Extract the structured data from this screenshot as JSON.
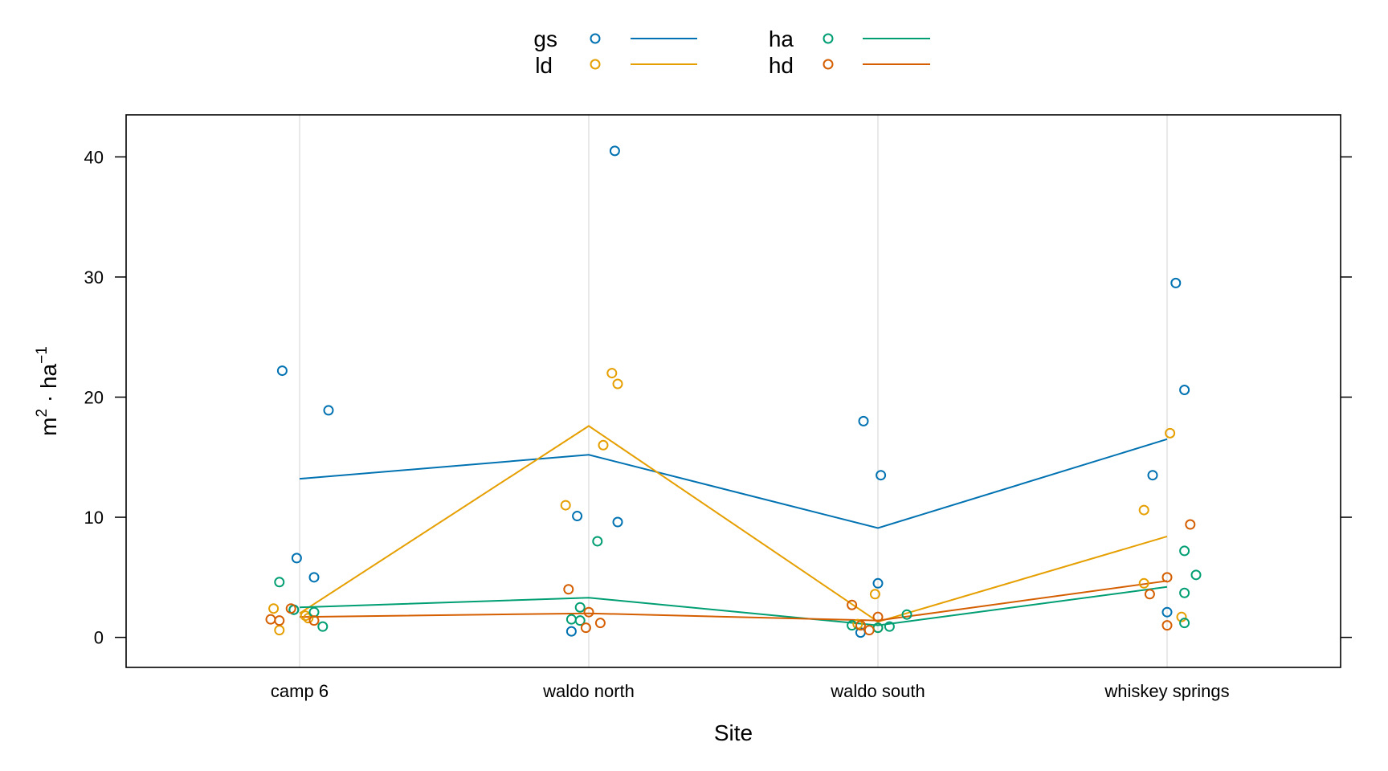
{
  "chart_data": {
    "type": "scatter",
    "xlabel": "Site",
    "ylabel": "m² · ha⁻¹",
    "ylabel_parts": {
      "base1": "m",
      "sup1": "2",
      "dot": " · ",
      "base2": "ha",
      "sup2": "−1"
    },
    "categories": [
      "camp 6",
      "waldo north",
      "waldo south",
      "whiskey springs"
    ],
    "ylim": [
      -2.5,
      43.5
    ],
    "yticks": [
      0,
      10,
      20,
      30,
      40
    ],
    "grid": "vertical",
    "legend": {
      "placement": "top",
      "columns": 2
    },
    "series": [
      {
        "name": "gs",
        "color": "#0072B2",
        "means": [
          13.2,
          15.2,
          9.1,
          16.5
        ],
        "points": [
          {
            "x": -0.06,
            "y": 22.2
          },
          {
            "x": 0.1,
            "y": 18.9
          },
          {
            "x": -0.01,
            "y": 6.6
          },
          {
            "x": 0.05,
            "y": 5.0
          },
          {
            "x": -0.02,
            "y": 2.3
          },
          {
            "x": 0.09,
            "y": 40.5
          },
          {
            "x": -0.04,
            "y": 10.1
          },
          {
            "x": 0.1,
            "y": 9.6
          },
          {
            "x": -0.06,
            "y": 0.5
          },
          {
            "x": -0.05,
            "y": 18.0
          },
          {
            "x": 0.01,
            "y": 13.5
          },
          {
            "x": 0.0,
            "y": 4.5
          },
          {
            "x": -0.06,
            "y": 0.4
          },
          {
            "x": 0.03,
            "y": 29.5
          },
          {
            "x": 0.06,
            "y": 20.6
          },
          {
            "x": -0.05,
            "y": 13.5
          },
          {
            "x": 0.0,
            "y": 2.1
          }
        ]
      },
      {
        "name": "ld",
        "color": "#E69F00",
        "means": [
          2.0,
          17.6,
          1.3,
          8.4
        ],
        "points": [
          {
            "x": -0.09,
            "y": 2.4
          },
          {
            "x": 0.02,
            "y": 1.8
          },
          {
            "x": -0.07,
            "y": 0.6
          },
          {
            "x": 0.03,
            "y": 1.6
          },
          {
            "x": 0.08,
            "y": 22.0
          },
          {
            "x": 0.1,
            "y": 21.1
          },
          {
            "x": 0.05,
            "y": 16.0
          },
          {
            "x": -0.08,
            "y": 11.0
          },
          {
            "x": -0.01,
            "y": 3.6
          },
          {
            "x": -0.07,
            "y": 1.1
          },
          {
            "x": 0.0,
            "y": 0.8
          },
          {
            "x": 0.01,
            "y": 17.0
          },
          {
            "x": -0.08,
            "y": 10.6
          },
          {
            "x": -0.08,
            "y": 4.5
          },
          {
            "x": 0.05,
            "y": 1.7
          }
        ]
      },
      {
        "name": "ha",
        "color": "#009E73",
        "means": [
          2.5,
          3.3,
          1.0,
          4.2
        ],
        "points": [
          {
            "x": -0.07,
            "y": 4.6
          },
          {
            "x": 0.05,
            "y": 2.1
          },
          {
            "x": -0.02,
            "y": 2.3
          },
          {
            "x": 0.08,
            "y": 0.9
          },
          {
            "x": 0.03,
            "y": 8.0
          },
          {
            "x": -0.03,
            "y": 2.5
          },
          {
            "x": -0.06,
            "y": 1.5
          },
          {
            "x": -0.03,
            "y": 1.4
          },
          {
            "x": 0.1,
            "y": 1.9
          },
          {
            "x": -0.09,
            "y": 1.0
          },
          {
            "x": 0.0,
            "y": 0.8
          },
          {
            "x": 0.04,
            "y": 0.9
          },
          {
            "x": 0.06,
            "y": 7.2
          },
          {
            "x": 0.1,
            "y": 5.2
          },
          {
            "x": 0.06,
            "y": 3.7
          },
          {
            "x": 0.06,
            "y": 1.2
          }
        ]
      },
      {
        "name": "hd",
        "color": "#D55E00",
        "means": [
          1.7,
          2.0,
          1.4,
          4.7
        ],
        "points": [
          {
            "x": -0.1,
            "y": 1.5
          },
          {
            "x": -0.07,
            "y": 1.4
          },
          {
            "x": -0.03,
            "y": 2.4
          },
          {
            "x": 0.05,
            "y": 1.4
          },
          {
            "x": -0.07,
            "y": 4.0
          },
          {
            "x": 0.0,
            "y": 2.1
          },
          {
            "x": -0.01,
            "y": 0.8
          },
          {
            "x": 0.04,
            "y": 1.2
          },
          {
            "x": -0.09,
            "y": 2.7
          },
          {
            "x": 0.0,
            "y": 1.7
          },
          {
            "x": -0.03,
            "y": 0.6
          },
          {
            "x": -0.06,
            "y": 1.0
          },
          {
            "x": 0.08,
            "y": 9.4
          },
          {
            "x": 0.0,
            "y": 5.0
          },
          {
            "x": -0.06,
            "y": 3.6
          },
          {
            "x": 0.0,
            "y": 1.0
          }
        ]
      }
    ]
  }
}
